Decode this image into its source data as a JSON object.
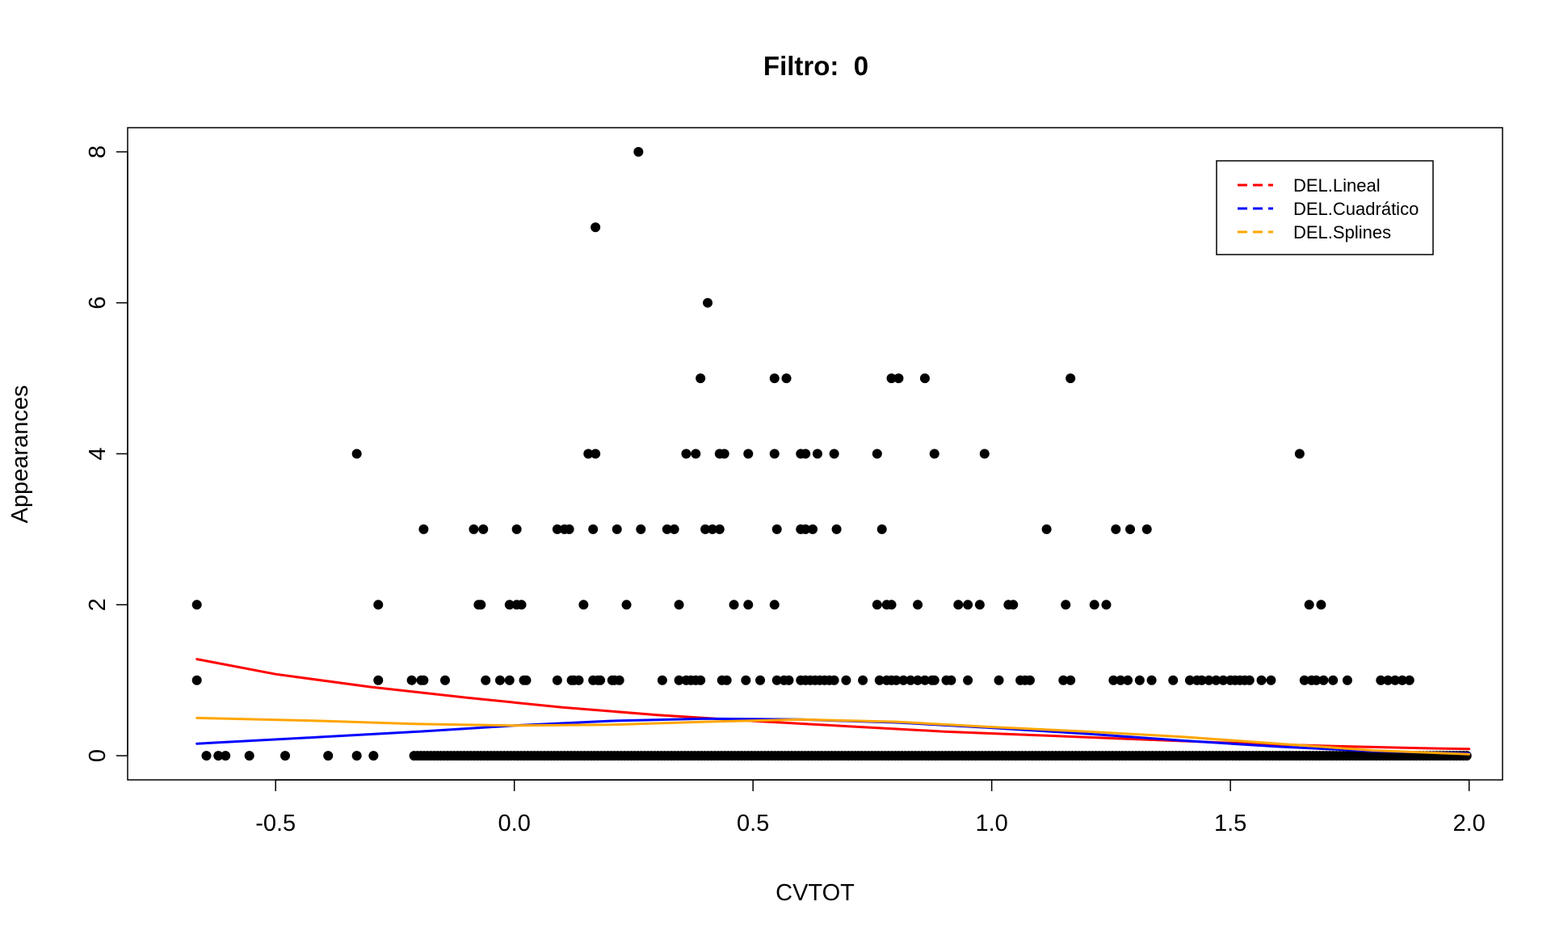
{
  "chart_data": {
    "type": "scatter",
    "title": "Filtro:  0",
    "xlabel": "CVTOT",
    "ylabel": "Appearances",
    "xlim": [
      -0.81,
      2.07
    ],
    "ylim": [
      -0.32,
      8.32
    ],
    "x_ticks": [
      -0.5,
      0.0,
      0.5,
      1.0,
      1.5,
      2.0
    ],
    "x_tick_labels": [
      "-0.5",
      "0.0",
      "0.5",
      "1.0",
      "1.5",
      "2.0"
    ],
    "y_ticks": [
      0,
      2,
      4,
      6,
      8
    ],
    "y_tick_labels": [
      "0",
      "2",
      "4",
      "6",
      "8"
    ],
    "grid": false,
    "legend_position": "top-right",
    "point_color": "#000000",
    "points": {
      "y8": [
        0.26
      ],
      "y7": [
        0.17
      ],
      "y6": [
        0.405
      ],
      "y5": [
        0.39,
        0.545,
        0.57,
        0.79,
        0.805,
        0.86,
        1.165
      ],
      "y4": [
        -0.33,
        0.155,
        0.17,
        0.36,
        0.38,
        0.43,
        0.44,
        0.49,
        0.545,
        0.6,
        0.61,
        0.635,
        0.67,
        0.76,
        0.88,
        0.985,
        1.645
      ],
      "y3": [
        -0.19,
        -0.085,
        -0.065,
        0.005,
        0.09,
        0.105,
        0.115,
        0.165,
        0.215,
        0.265,
        0.32,
        0.335,
        0.4,
        0.415,
        0.43,
        0.55,
        0.6,
        0.61,
        0.625,
        0.675,
        0.77,
        1.115,
        1.26,
        1.29,
        1.325
      ],
      "y2": [
        -0.665,
        -0.285,
        -0.075,
        -0.07,
        -0.01,
        0.005,
        0.015,
        0.145,
        0.235,
        0.345,
        0.46,
        0.49,
        0.545,
        0.76,
        0.78,
        0.79,
        0.845,
        0.93,
        0.95,
        0.975,
        1.035,
        1.045,
        1.155,
        1.215,
        1.24,
        1.665,
        1.69
      ],
      "y1": [
        -0.665,
        -0.285,
        -0.215,
        -0.195,
        -0.19,
        -0.145,
        -0.06,
        -0.03,
        -0.01,
        0.02,
        0.025,
        0.09,
        0.12,
        0.125,
        0.135,
        0.165,
        0.175,
        0.18,
        0.205,
        0.21,
        0.22,
        0.31,
        0.345,
        0.36,
        0.37,
        0.38,
        0.39,
        0.435,
        0.445,
        0.485,
        0.515,
        0.55,
        0.565,
        0.575,
        0.6,
        0.61,
        0.62,
        0.63,
        0.64,
        0.65,
        0.66,
        0.67,
        0.695,
        0.73,
        0.765,
        0.78,
        0.79,
        0.8,
        0.815,
        0.83,
        0.845,
        0.86,
        0.875,
        0.88,
        0.905,
        0.915,
        0.95,
        1.015,
        1.06,
        1.07,
        1.08,
        1.15,
        1.165,
        1.255,
        1.27,
        1.285,
        1.31,
        1.335,
        1.38,
        1.415,
        1.43,
        1.44,
        1.455,
        1.47,
        1.485,
        1.5,
        1.51,
        1.52,
        1.53,
        1.54,
        1.565,
        1.585,
        1.655,
        1.67,
        1.68,
        1.695,
        1.715,
        1.745,
        1.815,
        1.83,
        1.845,
        1.86,
        1.875
      ]
    },
    "series": [
      {
        "name": "DEL.Lineal",
        "color": "#ff0000",
        "x": [
          -0.665,
          -0.5,
          -0.3,
          -0.1,
          0.1,
          0.3,
          0.5,
          0.7,
          0.9,
          1.1,
          1.3,
          1.5,
          1.7,
          1.9,
          2.0
        ],
        "y": [
          1.28,
          1.08,
          0.91,
          0.77,
          0.64,
          0.54,
          0.46,
          0.39,
          0.32,
          0.27,
          0.22,
          0.17,
          0.13,
          0.1,
          0.09
        ]
      },
      {
        "name": "DEL.Cuadrático",
        "color": "#0000ff",
        "x": [
          -0.665,
          -0.4,
          -0.2,
          0.0,
          0.2,
          0.4,
          0.6,
          0.8,
          1.0,
          1.2,
          1.4,
          1.6,
          1.8,
          2.0
        ],
        "y": [
          0.16,
          0.25,
          0.32,
          0.4,
          0.46,
          0.49,
          0.48,
          0.44,
          0.37,
          0.29,
          0.2,
          0.12,
          0.06,
          0.03
        ]
      },
      {
        "name": "DEL.Splines",
        "color": "#ffa500",
        "x": [
          -0.665,
          -0.4,
          -0.2,
          0.0,
          0.2,
          0.4,
          0.6,
          0.8,
          1.0,
          1.2,
          1.4,
          1.6,
          1.8,
          2.0
        ],
        "y": [
          0.5,
          0.46,
          0.42,
          0.4,
          0.41,
          0.45,
          0.48,
          0.45,
          0.38,
          0.32,
          0.25,
          0.16,
          0.07,
          0.02
        ]
      }
    ]
  }
}
